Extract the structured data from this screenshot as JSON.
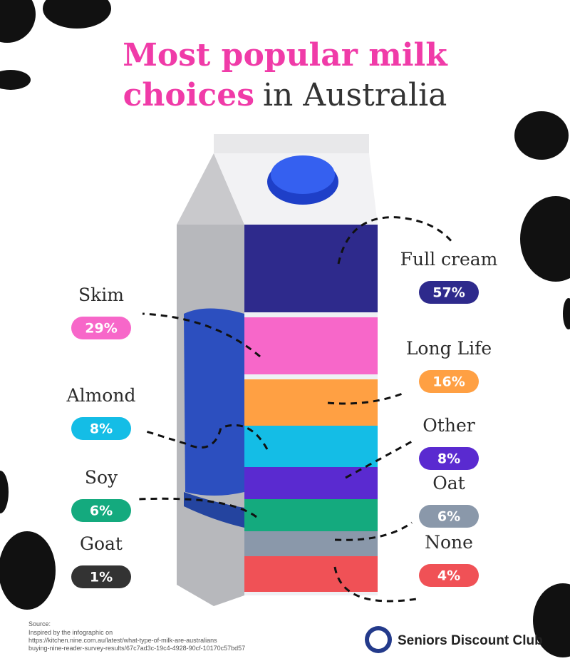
{
  "title_line1": "Most popular milk",
  "title_highlight": "choices",
  "title_rest": "in Australia",
  "items": [
    {
      "name": "Full cream",
      "label": "57%",
      "color": "#2e2a8c"
    },
    {
      "name": "Skim",
      "label": "29%",
      "color": "#f767c9"
    },
    {
      "name": "Long Life",
      "label": "16%",
      "color": "#ffa043"
    },
    {
      "name": "Almond",
      "label": "8%",
      "color": "#14bde6"
    },
    {
      "name": "Other",
      "label": "8%",
      "color": "#5a2ad0"
    },
    {
      "name": "Soy",
      "label": "6%",
      "color": "#14aa7e"
    },
    {
      "name": "Oat",
      "label": "6%",
      "color": "#8a98aa"
    },
    {
      "name": "None",
      "label": "4%",
      "color": "#f05156"
    },
    {
      "name": "Goat",
      "label": "1%",
      "color": "#333333"
    }
  ],
  "source_heading": "Source:",
  "source_lines": [
    "Inspired by the infographic on",
    "https://kitchen.nine.com.au/latest/what-type-of-milk-are-australians",
    "buying-nine-reader-survey-results/67c7ad3c-19c4-4928-90cf-10170c57bd57"
  ],
  "brand": "Seniors Discount Club"
}
